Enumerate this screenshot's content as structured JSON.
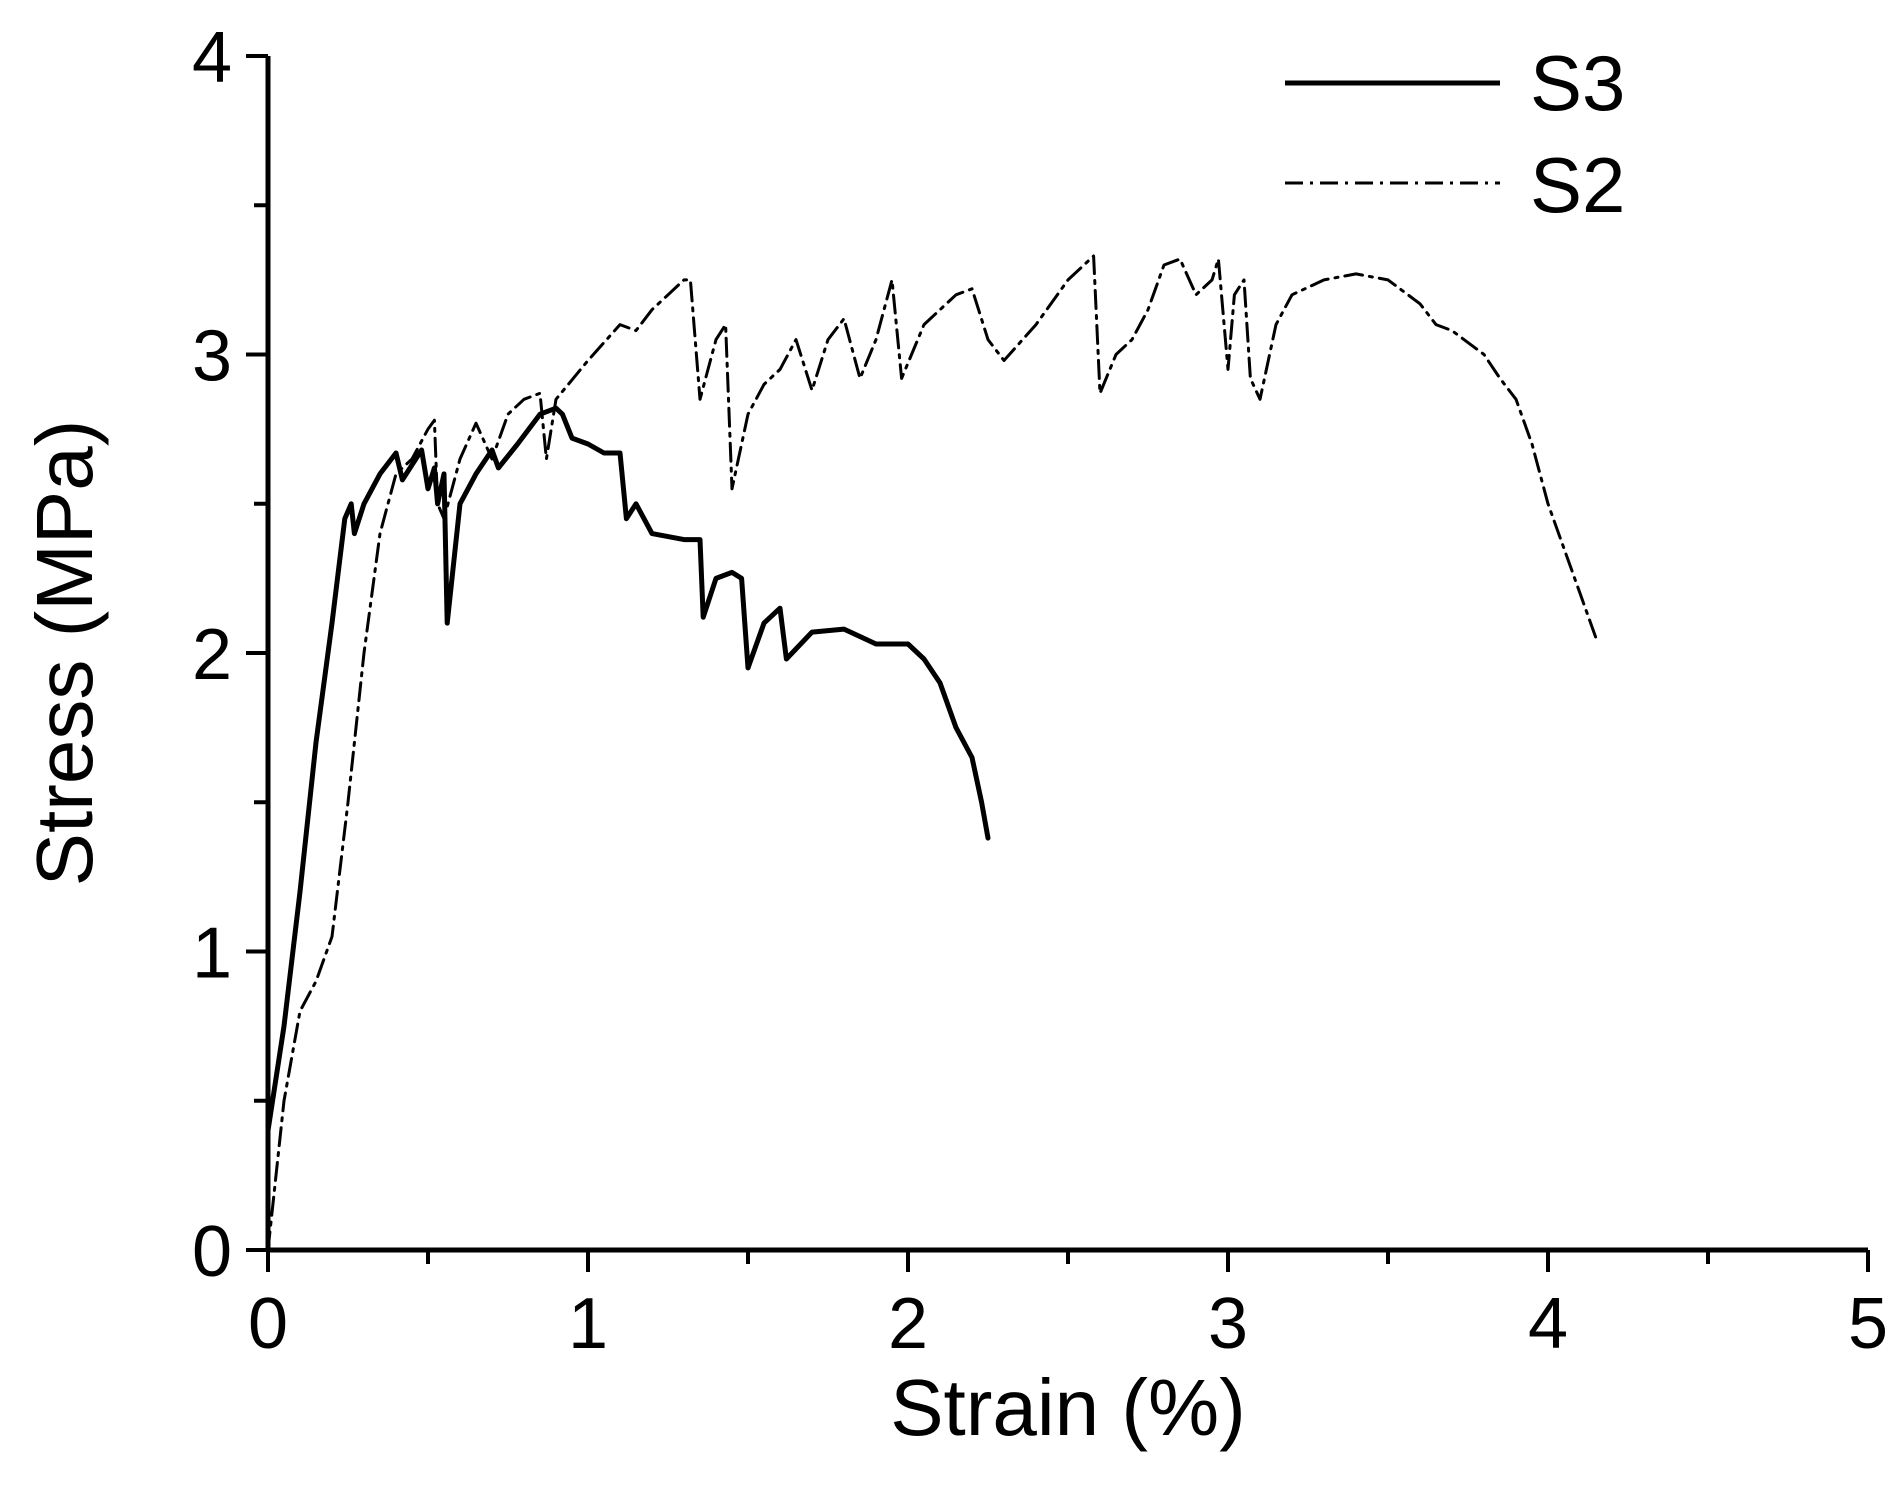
{
  "chart_data": {
    "type": "line",
    "title": "",
    "xlabel": "Strain (%)",
    "ylabel": "Stress (MPa)",
    "xlim": [
      0,
      5
    ],
    "ylim": [
      0,
      4
    ],
    "x_ticks": [
      0,
      1,
      2,
      3,
      4,
      5
    ],
    "x_tick_labels": [
      "0",
      "1",
      "2",
      "3",
      "4",
      "5"
    ],
    "y_ticks": [
      0,
      1,
      2,
      3,
      4
    ],
    "y_tick_labels": [
      "0",
      "1",
      "2",
      "3",
      "4"
    ],
    "grid": false,
    "legend_position": "top-right",
    "series": [
      {
        "name": "S3",
        "style": "solid",
        "color": "#000000",
        "points": [
          [
            0,
            0.4
          ],
          [
            0.05,
            0.75
          ],
          [
            0.1,
            1.2
          ],
          [
            0.15,
            1.7
          ],
          [
            0.2,
            2.1
          ],
          [
            0.24,
            2.45
          ],
          [
            0.26,
            2.5
          ],
          [
            0.27,
            2.4
          ],
          [
            0.3,
            2.5
          ],
          [
            0.35,
            2.6
          ],
          [
            0.4,
            2.67
          ],
          [
            0.42,
            2.58
          ],
          [
            0.45,
            2.63
          ],
          [
            0.48,
            2.68
          ],
          [
            0.5,
            2.55
          ],
          [
            0.52,
            2.62
          ],
          [
            0.53,
            2.5
          ],
          [
            0.55,
            2.6
          ],
          [
            0.56,
            2.1
          ],
          [
            0.58,
            2.3
          ],
          [
            0.6,
            2.5
          ],
          [
            0.65,
            2.6
          ],
          [
            0.7,
            2.68
          ],
          [
            0.72,
            2.62
          ],
          [
            0.78,
            2.7
          ],
          [
            0.85,
            2.8
          ],
          [
            0.9,
            2.82
          ],
          [
            0.92,
            2.8
          ],
          [
            0.95,
            2.72
          ],
          [
            1.0,
            2.7
          ],
          [
            1.05,
            2.67
          ],
          [
            1.1,
            2.67
          ],
          [
            1.12,
            2.45
          ],
          [
            1.15,
            2.5
          ],
          [
            1.2,
            2.4
          ],
          [
            1.3,
            2.38
          ],
          [
            1.35,
            2.38
          ],
          [
            1.36,
            2.12
          ],
          [
            1.4,
            2.25
          ],
          [
            1.45,
            2.27
          ],
          [
            1.48,
            2.25
          ],
          [
            1.5,
            1.95
          ],
          [
            1.55,
            2.1
          ],
          [
            1.6,
            2.15
          ],
          [
            1.62,
            1.98
          ],
          [
            1.7,
            2.07
          ],
          [
            1.8,
            2.08
          ],
          [
            1.9,
            2.03
          ],
          [
            1.95,
            2.03
          ],
          [
            2.0,
            2.03
          ],
          [
            2.05,
            1.98
          ],
          [
            2.1,
            1.9
          ],
          [
            2.15,
            1.75
          ],
          [
            2.2,
            1.65
          ],
          [
            2.23,
            1.5
          ],
          [
            2.25,
            1.38
          ]
        ]
      },
      {
        "name": "S2",
        "style": "dash-dot",
        "color": "#000000",
        "points": [
          [
            0,
            0
          ],
          [
            0.05,
            0.5
          ],
          [
            0.1,
            0.8
          ],
          [
            0.15,
            0.9
          ],
          [
            0.2,
            1.05
          ],
          [
            0.25,
            1.5
          ],
          [
            0.3,
            2.0
          ],
          [
            0.35,
            2.4
          ],
          [
            0.4,
            2.6
          ],
          [
            0.45,
            2.65
          ],
          [
            0.5,
            2.75
          ],
          [
            0.52,
            2.78
          ],
          [
            0.53,
            2.5
          ],
          [
            0.55,
            2.45
          ],
          [
            0.6,
            2.65
          ],
          [
            0.65,
            2.77
          ],
          [
            0.7,
            2.65
          ],
          [
            0.75,
            2.8
          ],
          [
            0.8,
            2.85
          ],
          [
            0.85,
            2.87
          ],
          [
            0.87,
            2.65
          ],
          [
            0.9,
            2.85
          ],
          [
            1.0,
            2.98
          ],
          [
            1.1,
            3.1
          ],
          [
            1.15,
            3.08
          ],
          [
            1.2,
            3.15
          ],
          [
            1.3,
            3.25
          ],
          [
            1.32,
            3.25
          ],
          [
            1.35,
            2.85
          ],
          [
            1.4,
            3.05
          ],
          [
            1.43,
            3.1
          ],
          [
            1.45,
            2.55
          ],
          [
            1.5,
            2.8
          ],
          [
            1.55,
            2.9
          ],
          [
            1.6,
            2.95
          ],
          [
            1.65,
            3.05
          ],
          [
            1.7,
            2.88
          ],
          [
            1.75,
            3.05
          ],
          [
            1.8,
            3.12
          ],
          [
            1.85,
            2.92
          ],
          [
            1.9,
            3.05
          ],
          [
            1.95,
            3.25
          ],
          [
            1.98,
            2.92
          ],
          [
            2.05,
            3.1
          ],
          [
            2.1,
            3.15
          ],
          [
            2.15,
            3.2
          ],
          [
            2.2,
            3.22
          ],
          [
            2.25,
            3.05
          ],
          [
            2.3,
            2.98
          ],
          [
            2.4,
            3.1
          ],
          [
            2.5,
            3.25
          ],
          [
            2.58,
            3.33
          ],
          [
            2.6,
            2.87
          ],
          [
            2.65,
            3.0
          ],
          [
            2.7,
            3.05
          ],
          [
            2.75,
            3.15
          ],
          [
            2.8,
            3.3
          ],
          [
            2.85,
            3.32
          ],
          [
            2.9,
            3.2
          ],
          [
            2.95,
            3.25
          ],
          [
            2.97,
            3.32
          ],
          [
            3.0,
            2.95
          ],
          [
            3.02,
            3.2
          ],
          [
            3.05,
            3.25
          ],
          [
            3.07,
            2.92
          ],
          [
            3.1,
            2.85
          ],
          [
            3.15,
            3.1
          ],
          [
            3.2,
            3.2
          ],
          [
            3.3,
            3.25
          ],
          [
            3.4,
            3.27
          ],
          [
            3.5,
            3.25
          ],
          [
            3.6,
            3.17
          ],
          [
            3.65,
            3.1
          ],
          [
            3.7,
            3.08
          ],
          [
            3.8,
            3.0
          ],
          [
            3.85,
            2.92
          ],
          [
            3.9,
            2.85
          ],
          [
            3.95,
            2.7
          ],
          [
            4.0,
            2.5
          ],
          [
            4.05,
            2.35
          ],
          [
            4.1,
            2.2
          ],
          [
            4.15,
            2.05
          ]
        ]
      }
    ]
  }
}
